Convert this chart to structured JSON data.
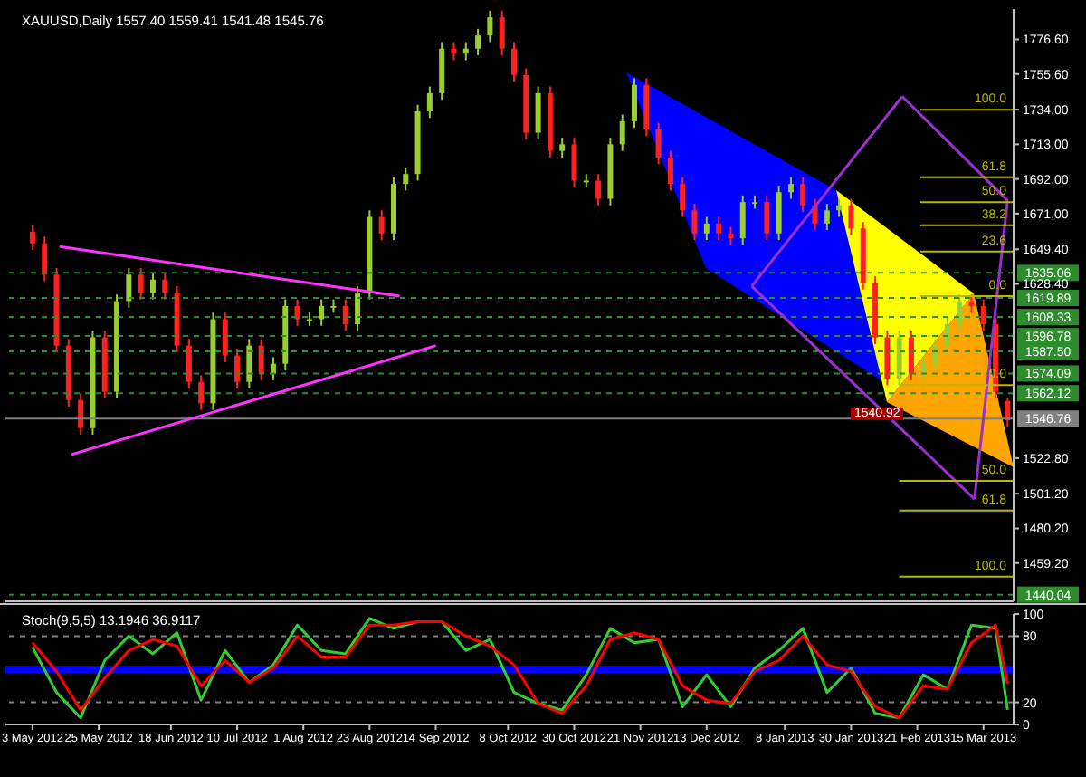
{
  "chart_data": [
    {
      "type": "candlestick",
      "title": "XAUUSD,Daily  1557.40 1559.41 1541.48 1545.76",
      "x": [
        "2012-05-03",
        "2012-05-07",
        "2012-05-11",
        "2012-05-15",
        "2012-05-19",
        "2012-05-23",
        "2012-05-27",
        "2012-05-31",
        "2012-06-04",
        "2012-06-08",
        "2012-06-12",
        "2012-06-16",
        "2012-06-20",
        "2012-06-24",
        "2012-06-28",
        "2012-07-02",
        "2012-07-06",
        "2012-07-10",
        "2012-07-14",
        "2012-07-18",
        "2012-07-22",
        "2012-07-26",
        "2012-07-30",
        "2012-08-03",
        "2012-08-07",
        "2012-08-11",
        "2012-08-15",
        "2012-08-19",
        "2012-08-23",
        "2012-08-27",
        "2012-08-31",
        "2012-09-04",
        "2012-09-08",
        "2012-09-12",
        "2012-09-16",
        "2012-09-20",
        "2012-09-24",
        "2012-09-28",
        "2012-10-02",
        "2012-10-06",
        "2012-10-10",
        "2012-10-14",
        "2012-10-18",
        "2012-10-22",
        "2012-10-26",
        "2012-10-30",
        "2012-11-03",
        "2012-11-07",
        "2012-11-11",
        "2012-11-15",
        "2012-11-19",
        "2012-11-23",
        "2012-11-27",
        "2012-12-01",
        "2012-12-05",
        "2012-12-09",
        "2012-12-13",
        "2012-12-17",
        "2012-12-21",
        "2012-12-25",
        "2012-12-29",
        "2013-01-02",
        "2013-01-06",
        "2013-01-10",
        "2013-01-14",
        "2013-01-18",
        "2013-01-22",
        "2013-01-26",
        "2013-01-30",
        "2013-02-03",
        "2013-02-07",
        "2013-02-11",
        "2013-02-15",
        "2013-02-19",
        "2013-02-23",
        "2013-02-27",
        "2013-03-03",
        "2013-03-07",
        "2013-03-11",
        "2013-03-15",
        "2013-03-19",
        "2013-03-23"
      ],
      "ohlc": [
        [
          1660,
          1664,
          1649,
          1653
        ],
        [
          1653,
          1657,
          1630,
          1634
        ],
        [
          1634,
          1638,
          1587,
          1591
        ],
        [
          1591,
          1595,
          1554,
          1558
        ],
        [
          1558,
          1562,
          1537,
          1541
        ],
        [
          1541,
          1600,
          1537,
          1596
        ],
        [
          1596,
          1600,
          1559,
          1563
        ],
        [
          1563,
          1622,
          1559,
          1618
        ],
        [
          1618,
          1638,
          1614,
          1634
        ],
        [
          1634,
          1638,
          1619,
          1623
        ],
        [
          1623,
          1635,
          1619,
          1631
        ],
        [
          1631,
          1635,
          1619,
          1623
        ],
        [
          1623,
          1627,
          1587,
          1591
        ],
        [
          1591,
          1595,
          1565,
          1569
        ],
        [
          1569,
          1573,
          1552,
          1556
        ],
        [
          1556,
          1611,
          1552,
          1607
        ],
        [
          1607,
          1611,
          1581,
          1585
        ],
        [
          1585,
          1589,
          1565,
          1569
        ],
        [
          1569,
          1595,
          1565,
          1591
        ],
        [
          1591,
          1595,
          1570,
          1574
        ],
        [
          1574,
          1584,
          1570,
          1580
        ],
        [
          1580,
          1619,
          1576,
          1615
        ],
        [
          1615,
          1619,
          1603,
          1607
        ],
        [
          1607,
          1611,
          1603,
          1607
        ],
        [
          1607,
          1619,
          1603,
          1615
        ],
        [
          1615,
          1619,
          1611,
          1615
        ],
        [
          1615,
          1619,
          1600,
          1604
        ],
        [
          1604,
          1627,
          1600,
          1623
        ],
        [
          1623,
          1673,
          1619,
          1669
        ],
        [
          1669,
          1673,
          1655,
          1659
        ],
        [
          1659,
          1693,
          1655,
          1689
        ],
        [
          1689,
          1699,
          1685,
          1695
        ],
        [
          1695,
          1737,
          1691,
          1733
        ],
        [
          1733,
          1748,
          1729,
          1744
        ],
        [
          1744,
          1775,
          1740,
          1771
        ],
        [
          1771,
          1775,
          1764,
          1768
        ],
        [
          1768,
          1775,
          1764,
          1771
        ],
        [
          1771,
          1783,
          1767,
          1779
        ],
        [
          1779,
          1794,
          1775,
          1790
        ],
        [
          1790,
          1794,
          1767,
          1771
        ],
        [
          1771,
          1775,
          1751,
          1755
        ],
        [
          1755,
          1759,
          1716,
          1720
        ],
        [
          1720,
          1748,
          1716,
          1744
        ],
        [
          1744,
          1748,
          1705,
          1709
        ],
        [
          1709,
          1717,
          1705,
          1713
        ],
        [
          1713,
          1717,
          1687,
          1691
        ],
        [
          1691,
          1695,
          1687,
          1691
        ],
        [
          1691,
          1695,
          1676,
          1680
        ],
        [
          1680,
          1717,
          1676,
          1713
        ],
        [
          1713,
          1731,
          1709,
          1727
        ],
        [
          1727,
          1753,
          1723,
          1749
        ],
        [
          1749,
          1753,
          1718,
          1722
        ],
        [
          1722,
          1726,
          1701,
          1705
        ],
        [
          1705,
          1709,
          1685,
          1689
        ],
        [
          1689,
          1693,
          1669,
          1673
        ],
        [
          1673,
          1677,
          1655,
          1659
        ],
        [
          1659,
          1669,
          1655,
          1665
        ],
        [
          1665,
          1669,
          1655,
          1659
        ],
        [
          1659,
          1663,
          1652,
          1656
        ],
        [
          1656,
          1682,
          1652,
          1678
        ],
        [
          1678,
          1682,
          1674,
          1678
        ],
        [
          1678,
          1682,
          1655,
          1659
        ],
        [
          1659,
          1688,
          1655,
          1684
        ],
        [
          1684,
          1693,
          1680,
          1689
        ],
        [
          1689,
          1693,
          1672,
          1676
        ],
        [
          1676,
          1680,
          1661,
          1665
        ],
        [
          1665,
          1677,
          1661,
          1673
        ],
        [
          1673,
          1680,
          1669,
          1676
        ],
        [
          1676,
          1680,
          1658,
          1662
        ],
        [
          1662,
          1666,
          1625,
          1629
        ],
        [
          1629,
          1633,
          1592,
          1596
        ],
        [
          1596,
          1600,
          1567,
          1571
        ],
        [
          1571,
          1600,
          1567,
          1596
        ],
        [
          1596,
          1600,
          1570,
          1574
        ],
        [
          1574,
          1584,
          1570,
          1580
        ],
        [
          1580,
          1595,
          1576,
          1591
        ],
        [
          1591,
          1608,
          1587,
          1604
        ],
        [
          1604,
          1622,
          1600,
          1618
        ],
        [
          1618,
          1622,
          1611,
          1615
        ],
        [
          1615,
          1619,
          1600,
          1604
        ],
        [
          1604,
          1608,
          1559,
          1563
        ],
        [
          1557.4,
          1559.41,
          1541.48,
          1545.76
        ]
      ],
      "colors": [
        "#ff2020",
        "#ff2020",
        "#ff2020",
        "#ff2020",
        "#ff2020",
        "#9acd32",
        "#ff2020",
        "#9acd32",
        "#9acd32",
        "#ff2020",
        "#9acd32",
        "#ff2020",
        "#ff2020",
        "#ff2020",
        "#ff2020",
        "#9acd32",
        "#ff2020",
        "#ff2020",
        "#9acd32",
        "#ff2020",
        "#9acd32",
        "#9acd32",
        "#ff2020",
        "#9acd32",
        "#9acd32",
        "#9acd32",
        "#ff2020",
        "#9acd32",
        "#9acd32",
        "#ff2020",
        "#9acd32",
        "#9acd32",
        "#9acd32",
        "#9acd32",
        "#9acd32",
        "#ff2020",
        "#9acd32",
        "#9acd32",
        "#9acd32",
        "#ff2020",
        "#ff2020",
        "#ff2020",
        "#9acd32",
        "#ff2020",
        "#9acd32",
        "#ff2020",
        "#9acd32",
        "#ff2020",
        "#9acd32",
        "#9acd32",
        "#9acd32",
        "#ff2020",
        "#ff2020",
        "#ff2020",
        "#ff2020",
        "#ff2020",
        "#9acd32",
        "#ff2020",
        "#ff2020",
        "#9acd32",
        "#9acd32",
        "#ff2020",
        "#9acd32",
        "#9acd32",
        "#ff2020",
        "#ff2020",
        "#9acd32",
        "#9acd32",
        "#ff2020",
        "#ff2020",
        "#ff2020",
        "#ff2020",
        "#9acd32",
        "#ff2020",
        "#9acd32",
        "#9acd32",
        "#9acd32",
        "#9acd32",
        "#ff2020",
        "#ff2020",
        "#ff2020",
        "#ff2020"
      ],
      "series": [
        {
          "type": "line",
          "color": "#ff33ff",
          "x": [
            "2012-05-12",
            "2012-09-02"
          ],
          "values": [
            1651,
            1621
          ]
        },
        {
          "type": "line",
          "color": "#ff33ff",
          "x": [
            "2012-05-16",
            "2012-09-14"
          ],
          "values": [
            1525,
            1591
          ]
        },
        {
          "type": "line",
          "color": "#9932cc",
          "x": [
            "2012-12-28",
            "2013-02-16"
          ],
          "values": [
            1627,
            1742
          ]
        },
        {
          "type": "line",
          "color": "#9932cc",
          "x": [
            "2013-02-16",
            "2013-03-23"
          ],
          "values": [
            1742,
            1679
          ]
        },
        {
          "type": "line",
          "color": "#9932cc",
          "x": [
            "2012-12-28",
            "2013-03-12"
          ],
          "values": [
            1627,
            1498
          ]
        },
        {
          "type": "line",
          "color": "#9932cc",
          "x": [
            "2013-03-12",
            "2013-03-23"
          ],
          "values": [
            1498,
            1679
          ]
        },
        {
          "type": "line",
          "name": "100.0",
          "color": "#b8b800",
          "x": [
            "2013-02-22",
            "2013-03-25"
          ],
          "values": [
            1734,
            1734
          ]
        },
        {
          "type": "line",
          "name": "61.8",
          "color": "#b8b800",
          "x": [
            "2013-02-22",
            "2013-03-25"
          ],
          "values": [
            1693,
            1693
          ]
        },
        {
          "type": "line",
          "name": "50.0",
          "color": "#b8b800",
          "x": [
            "2013-02-22",
            "2013-03-25"
          ],
          "values": [
            1678,
            1678
          ]
        },
        {
          "type": "line",
          "name": "38.2",
          "color": "#b8b800",
          "x": [
            "2013-02-22",
            "2013-03-25"
          ],
          "values": [
            1664,
            1664
          ]
        },
        {
          "type": "line",
          "name": "23.6",
          "color": "#b8b800",
          "x": [
            "2013-02-22",
            "2013-03-25"
          ],
          "values": [
            1648,
            1648
          ]
        },
        {
          "type": "line",
          "name": "0.0",
          "color": "#b8b800",
          "x": [
            "2013-02-22",
            "2013-03-25"
          ],
          "values": [
            1621,
            1621
          ]
        },
        {
          "type": "line",
          "name": "0.0",
          "color": "#b8b800",
          "x": [
            "2013-02-15",
            "2013-03-25"
          ],
          "values": [
            1567,
            1567
          ]
        },
        {
          "type": "line",
          "name": "50.0",
          "color": "#b8b800",
          "x": [
            "2013-02-15",
            "2013-03-25"
          ],
          "values": [
            1509,
            1509
          ]
        },
        {
          "type": "line",
          "name": "61.8",
          "color": "#b8b800",
          "x": [
            "2013-02-15",
            "2013-03-25"
          ],
          "values": [
            1491,
            1491
          ]
        },
        {
          "type": "line",
          "name": "100.0",
          "color": "#b8b800",
          "x": [
            "2013-02-15",
            "2013-03-25"
          ],
          "values": [
            1451,
            1451
          ]
        }
      ],
      "xlim": [
        "2012-04-24",
        "2013-03-25"
      ],
      "ylim": [
        1436,
        1795
      ],
      "yticks": [
        {
          "value": 1776.6,
          "label": "1776.60"
        },
        {
          "value": 1755.6,
          "label": "1755.60"
        },
        {
          "value": 1734,
          "label": "1734.00"
        },
        {
          "value": 1713,
          "label": "1713.00"
        },
        {
          "value": 1692,
          "label": "1692.00"
        },
        {
          "value": 1671,
          "label": "1671.00"
        },
        {
          "value": 1649.4,
          "label": "1649.40"
        },
        {
          "value": 1628.4,
          "label": "1628.40"
        },
        {
          "value": 1522.8,
          "label": "1522.80"
        },
        {
          "value": 1501.2,
          "label": "1501.20"
        },
        {
          "value": 1480.2,
          "label": "1480.20"
        },
        {
          "value": 1459.2,
          "label": "1459.20"
        }
      ],
      "tick_labels": "y",
      "ref_lines": [
        {
          "axis": "y",
          "value": 1635.06,
          "label": "1635.06",
          "color": "#2e8b2e",
          "line_style": "dashed"
        },
        {
          "axis": "y",
          "value": 1619.89,
          "label": "1619.89",
          "color": "#2e8b2e",
          "line_style": "dashed"
        },
        {
          "axis": "y",
          "value": 1608.33,
          "label": "1608.33",
          "color": "#2e8b2e",
          "line_style": "dashed"
        },
        {
          "axis": "y",
          "value": 1596.78,
          "label": "1596.78",
          "color": "#2e8b2e",
          "line_style": "dashed"
        },
        {
          "axis": "y",
          "value": 1587.5,
          "label": "1587.50",
          "color": "#2e8b2e",
          "line_style": "dashed"
        },
        {
          "axis": "y",
          "value": 1574.09,
          "label": "1574.09",
          "color": "#2e8b2e",
          "line_style": "dashed"
        },
        {
          "axis": "y",
          "value": 1562.12,
          "label": "1562.12",
          "color": "#2e8b2e",
          "line_style": "dashed"
        },
        {
          "axis": "y",
          "value": 1546.76,
          "label": "1546.76",
          "color": "#808080",
          "line_style": "solid"
        },
        {
          "axis": "y",
          "value": 1440.04,
          "label": "1440.04",
          "color": "#2e8b2e",
          "line_style": "dashed"
        }
      ],
      "annotations": [
        "1540.92"
      ],
      "legend": false
    },
    {
      "type": "line",
      "title": "Stoch(9,5,5) 13.1946 36.9117",
      "x": [
        "2012-05-03",
        "2012-05-11",
        "2012-05-19",
        "2012-05-27",
        "2012-06-04",
        "2012-06-12",
        "2012-06-20",
        "2012-06-28",
        "2012-07-06",
        "2012-07-14",
        "2012-07-22",
        "2012-07-30",
        "2012-08-07",
        "2012-08-15",
        "2012-08-23",
        "2012-08-31",
        "2012-09-08",
        "2012-09-16",
        "2012-09-24",
        "2012-10-02",
        "2012-10-10",
        "2012-10-18",
        "2012-10-26",
        "2012-11-03",
        "2012-11-11",
        "2012-11-19",
        "2012-11-27",
        "2012-12-05",
        "2012-12-13",
        "2012-12-21",
        "2012-12-29",
        "2013-01-06",
        "2013-01-14",
        "2013-01-22",
        "2013-01-30",
        "2013-02-07",
        "2013-02-15",
        "2013-02-23",
        "2013-03-03",
        "2013-03-11",
        "2013-03-19",
        "2013-03-23"
      ],
      "series": [
        {
          "color": "#32cd32",
          "values": [
            70,
            29,
            6,
            58,
            80,
            64,
            83,
            22,
            67,
            38,
            54,
            90,
            67,
            64,
            96,
            87,
            93,
            93,
            67,
            77,
            29,
            19,
            13,
            45,
            87,
            74,
            77,
            16,
            45,
            16,
            51,
            67,
            87,
            29,
            51,
            10,
            6,
            45,
            32,
            90,
            87,
            13.1946
          ]
        },
        {
          "color": "#ff0000",
          "values": [
            74,
            48,
            13,
            42,
            67,
            77,
            71,
            35,
            58,
            38,
            51,
            80,
            61,
            61,
            90,
            90,
            93,
            93,
            80,
            71,
            54,
            19,
            10,
            35,
            77,
            83,
            77,
            35,
            22,
            19,
            48,
            58,
            80,
            54,
            48,
            16,
            6,
            35,
            32,
            74,
            90,
            36.9117
          ]
        }
      ],
      "xlim": [
        "2012-04-24",
        "2013-03-25"
      ],
      "xticks": [
        {
          "value": "2012-05-03",
          "label": "3 May 2012"
        },
        {
          "value": "2012-05-25",
          "label": "25 May 2012"
        },
        {
          "value": "2012-06-18",
          "label": "18 Jun 2012"
        },
        {
          "value": "2012-07-10",
          "label": "10 Jul 2012"
        },
        {
          "value": "2012-08-01",
          "label": "1 Aug 2012"
        },
        {
          "value": "2012-08-23",
          "label": "23 Aug 2012"
        },
        {
          "value": "2012-09-14",
          "label": "14 Sep 2012"
        },
        {
          "value": "2012-10-08",
          "label": "8 Oct 2012"
        },
        {
          "value": "2012-10-30",
          "label": "30 Oct 2012"
        },
        {
          "value": "2012-11-21",
          "label": "21 Nov 2012"
        },
        {
          "value": "2012-12-13",
          "label": "13 Dec 2012"
        },
        {
          "value": "2013-01-08",
          "label": "8 Jan 2013"
        },
        {
          "value": "2013-01-30",
          "label": "30 Jan 2013"
        },
        {
          "value": "2013-02-21",
          "label": "21 Feb 2013"
        },
        {
          "value": "2013-03-15",
          "label": "15 Mar 2013"
        }
      ],
      "ylim": [
        0,
        100
      ],
      "yticks": [
        0,
        20,
        80,
        100
      ],
      "ref_lines": [
        {
          "axis": "y",
          "value": 80,
          "color": "#808080",
          "line_style": "dashed"
        },
        {
          "axis": "y",
          "value": 20,
          "color": "#808080",
          "line_style": "dashed"
        },
        {
          "axis": "y",
          "value": 50,
          "color": "#0000ff",
          "line_style": "solid"
        }
      ],
      "legend": false
    }
  ]
}
